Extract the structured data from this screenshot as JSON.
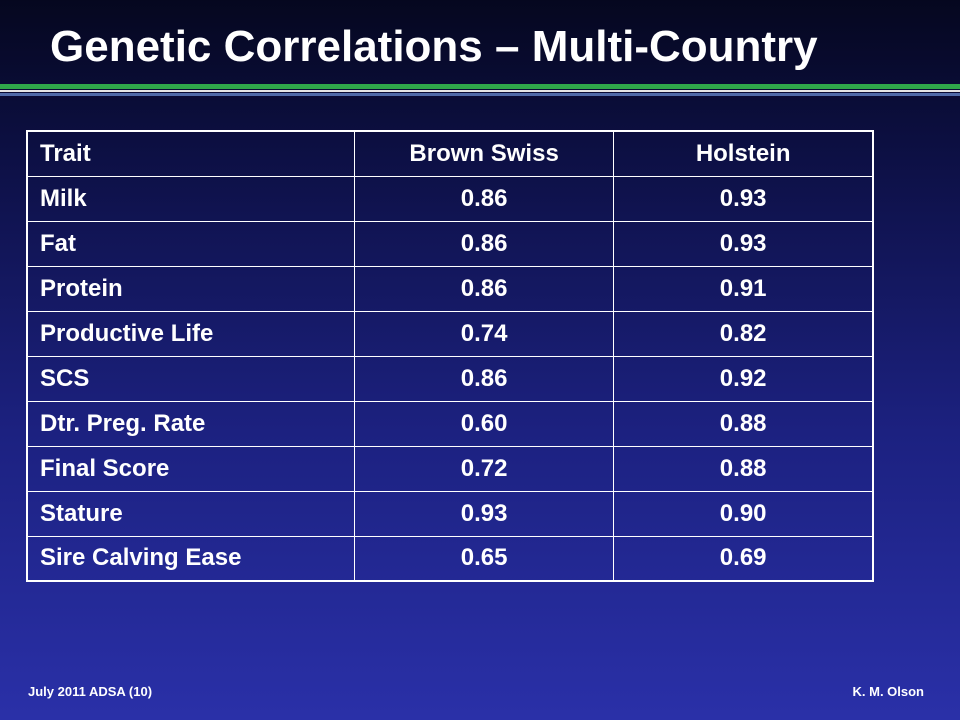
{
  "slide": {
    "title": "Genetic Correlations – Multi-Country",
    "footer_left": "July 2011 ADSA (10)",
    "footer_right": "K. M. Olson"
  },
  "colors": {
    "background_top": "#05071f",
    "background_bottom": "#2a30a8",
    "rule_green": "#2fa84a",
    "rule_white": "#e6e6e6",
    "rule_blue": "#4f6aa8",
    "text": "#ffffff"
  },
  "table": {
    "headers": [
      "Trait",
      "Brown Swiss",
      "Holstein"
    ],
    "rows": [
      [
        "Milk",
        "0.86",
        "0.93"
      ],
      [
        "Fat",
        "0.86",
        "0.93"
      ],
      [
        "Protein",
        "0.86",
        "0.91"
      ],
      [
        "Productive Life",
        "0.74",
        "0.82"
      ],
      [
        "SCS",
        "0.86",
        "0.92"
      ],
      [
        "Dtr. Preg. Rate",
        "0.60",
        "0.88"
      ],
      [
        "Final Score",
        "0.72",
        "0.88"
      ],
      [
        "Stature",
        "0.93",
        "0.90"
      ],
      [
        "Sire Calving Ease",
        "0.65",
        "0.69"
      ]
    ]
  }
}
